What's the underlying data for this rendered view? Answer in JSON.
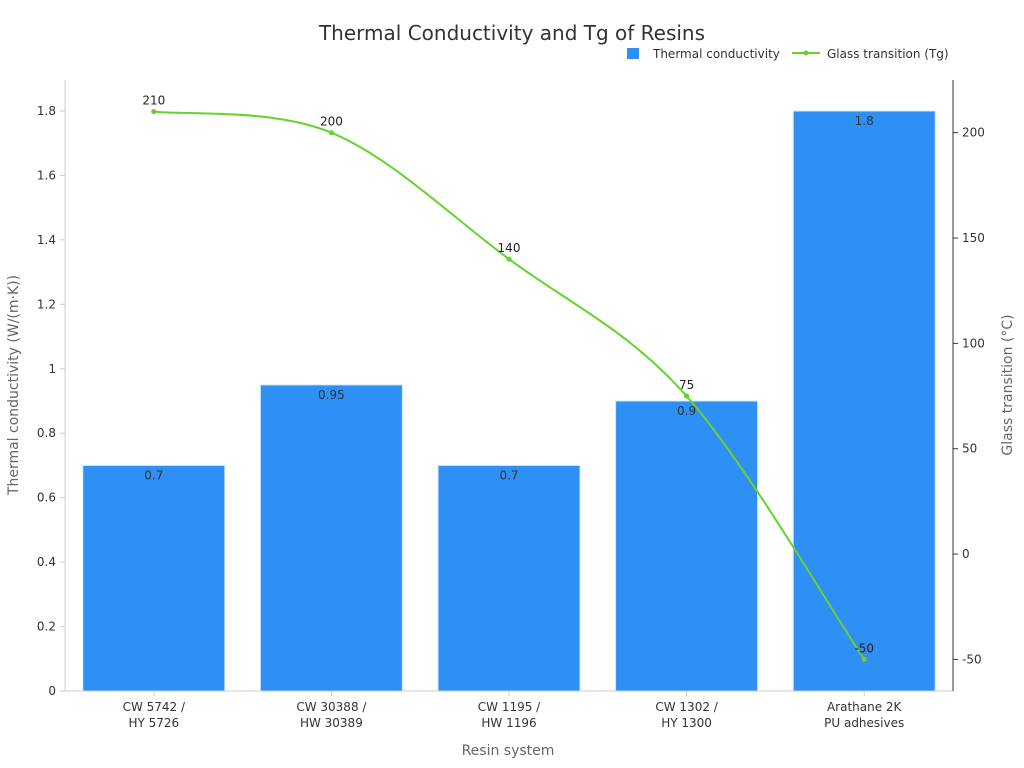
{
  "chart_data": {
    "type": "bar",
    "title": "Thermal Conductivity and Tg of Resins",
    "xlabel": "Resin system",
    "ylabel": "Thermal conductivity (W/(m·K))",
    "y2label": "Glass transition (°C)",
    "categories": [
      [
        "CW 5742 /",
        "HY 5726"
      ],
      [
        "CW 30388 /",
        "HW 30389"
      ],
      [
        "CW 1195 /",
        "HW 1196"
      ],
      [
        "CW 1302 /",
        "HY 1300"
      ],
      [
        "Arathane 2K",
        "PU adhesives"
      ]
    ],
    "ylim": [
      0,
      1.8
    ],
    "y_ticks": [
      0,
      0.2,
      0.4,
      0.6,
      0.8,
      1,
      1.2,
      1.4,
      1.6,
      1.8
    ],
    "y2lim": [
      -65,
      225
    ],
    "y2_ticks": [
      -50,
      0,
      50,
      100,
      150,
      200
    ],
    "series": [
      {
        "name": "Thermal conductivity",
        "type": "bar",
        "axis": "left",
        "color": "#2e90f5",
        "values": [
          0.7,
          0.95,
          0.7,
          0.9,
          1.8
        ],
        "labels": [
          "0.7",
          "0.95",
          "0.7",
          "0.9",
          "1.8"
        ]
      },
      {
        "name": "Glass transition (Tg)",
        "type": "line",
        "axis": "right",
        "color": "#66d32c",
        "values": [
          210,
          200,
          140,
          75,
          -50
        ],
        "labels": [
          "210",
          "200",
          "140",
          "75",
          "-50"
        ]
      }
    ],
    "legend": "top-right",
    "grid": false
  }
}
